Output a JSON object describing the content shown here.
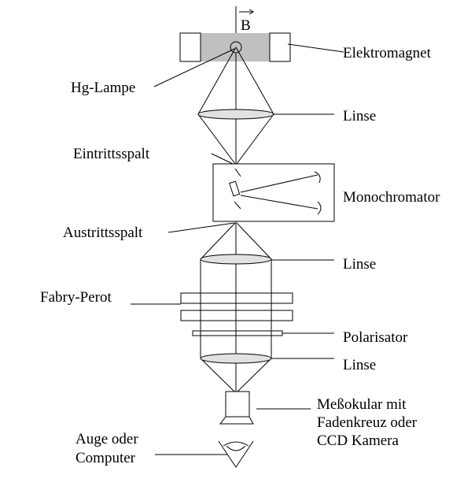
{
  "field_label": "B",
  "labels": {
    "elektromagnet": "Elektromagnet",
    "hg_lampe": "Hg-Lampe",
    "linse_1": "Linse",
    "eintrittsspalt": "Eintrittsspalt",
    "monochromator": "Monochromator",
    "austrittsspalt": "Austrittsspalt",
    "linse_2": "Linse",
    "fabry_perot": "Fabry-Perot",
    "polarisator": "Polarisator",
    "linse_3": "Linse",
    "messokular": [
      "Meßokular mit",
      "Fadenkreuz oder",
      "CCD Kamera"
    ],
    "auge": [
      "Auge oder",
      "Computer"
    ]
  },
  "colors": {
    "magnet_gap": "#c0c0c0",
    "plate_fill": "#d3d3d3",
    "lens_fill": "#e2e2e2",
    "line": "#000000",
    "background": "#ffffff"
  }
}
